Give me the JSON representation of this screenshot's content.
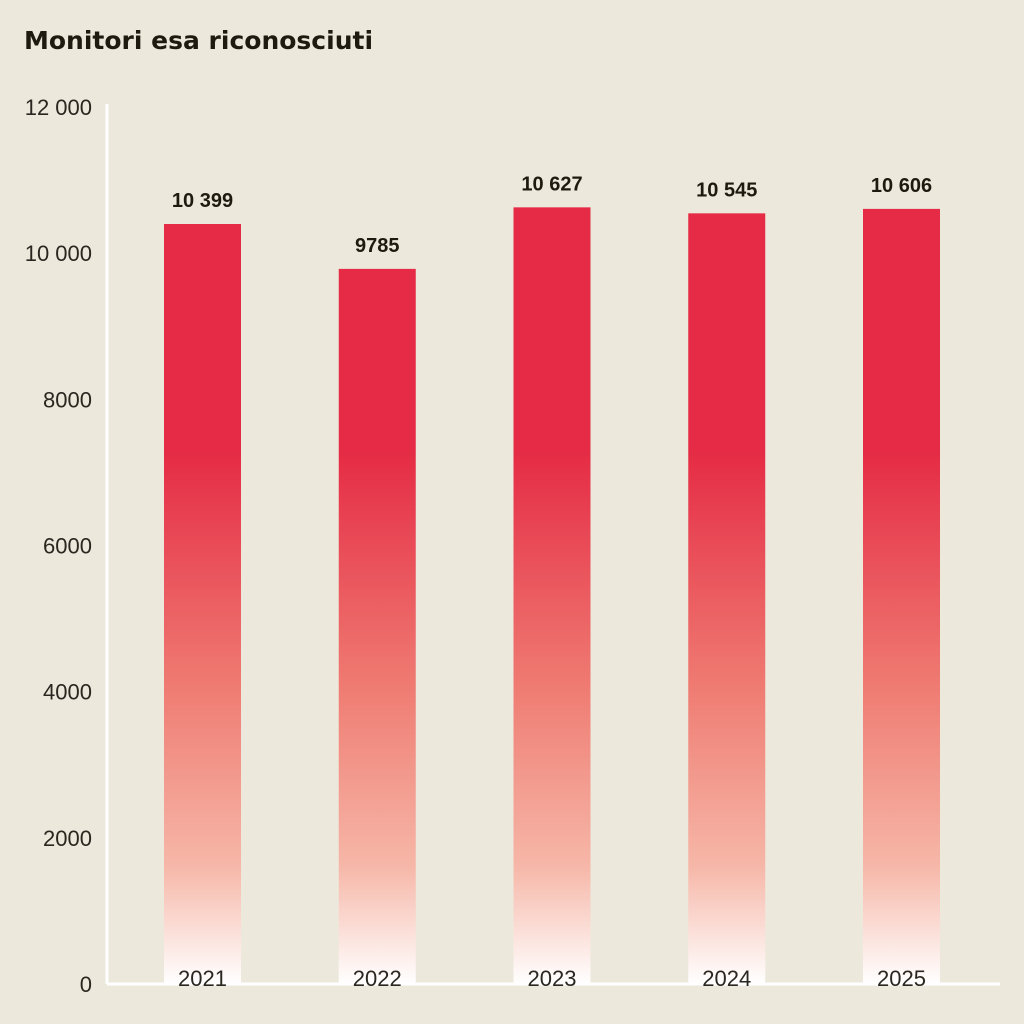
{
  "chart_data": {
    "type": "bar",
    "title": "Monitori esa riconosciuti",
    "categories": [
      "2021",
      "2022",
      "2023",
      "2024",
      "2025"
    ],
    "values": [
      10399,
      9785,
      10627,
      10545,
      10606
    ],
    "value_labels": [
      "10 399",
      "9785",
      "10 627",
      "10 545",
      "10 606"
    ],
    "yticks": [
      0,
      2000,
      4000,
      6000,
      8000,
      10000,
      12000
    ],
    "ytick_labels": [
      "0",
      "2000",
      "4000",
      "6000",
      "8000",
      "10 000",
      "12 000"
    ],
    "ylim": [
      0,
      12000
    ],
    "xlabel": "",
    "ylabel": "",
    "grid": false,
    "colors": {
      "bar_top": "#e52b45",
      "bar_mid": "#ef7b72",
      "bar_bottom": "#ffffff",
      "background": "#ece9dc",
      "axis": "#ffffff"
    }
  }
}
